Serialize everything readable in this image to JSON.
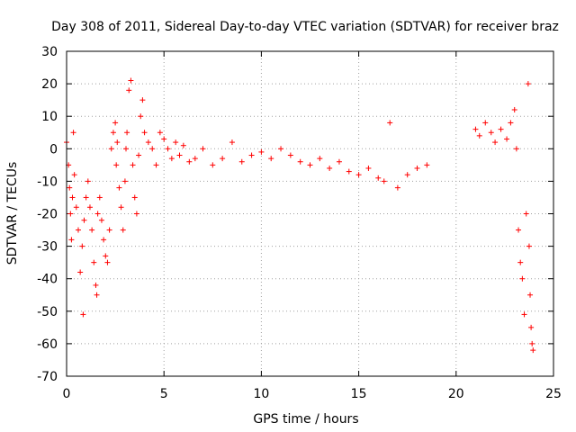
{
  "chart_data": {
    "type": "scatter",
    "title": "Day 308 of 2011, Sidereal Day-to-day VTEC variation (SDTVAR) for receiver braz",
    "xlabel": "GPS time / hours",
    "ylabel": "SDTVAR / TECUs",
    "xlim": [
      0,
      25
    ],
    "ylim": [
      -70,
      30
    ],
    "xticks": [
      0,
      5,
      10,
      15,
      20,
      25
    ],
    "yticks": [
      -70,
      -60,
      -50,
      -40,
      -30,
      -20,
      -10,
      0,
      10,
      20,
      30
    ],
    "xtick_labels": [
      "0",
      "5",
      "10",
      "15",
      "20",
      "25"
    ],
    "ytick_labels": [
      "-70",
      "-60",
      "-50",
      "-40",
      "-30",
      "-20",
      "-10",
      "0",
      "10",
      "20",
      "30"
    ],
    "grid": true,
    "marker": "plus",
    "color": "#ff0000",
    "series": [
      {
        "name": "SDTVAR",
        "x": [
          0.0,
          0.1,
          0.15,
          0.2,
          0.25,
          0.3,
          0.35,
          0.4,
          0.5,
          0.6,
          0.7,
          0.8,
          0.85,
          0.9,
          1.0,
          1.1,
          1.2,
          1.3,
          1.4,
          1.5,
          1.55,
          1.6,
          1.7,
          1.8,
          1.9,
          2.0,
          2.1,
          2.2,
          2.3,
          2.4,
          2.5,
          2.55,
          2.6,
          2.7,
          2.8,
          2.9,
          3.0,
          3.05,
          3.1,
          3.2,
          3.3,
          3.4,
          3.5,
          3.6,
          3.7,
          3.8,
          3.9,
          4.0,
          4.2,
          4.4,
          4.6,
          4.8,
          5.0,
          5.2,
          5.4,
          5.6,
          5.8,
          6.0,
          6.3,
          6.6,
          7.0,
          7.5,
          8.0,
          8.5,
          9.0,
          9.5,
          10.0,
          10.5,
          11.0,
          11.5,
          12.0,
          12.5,
          13.0,
          13.5,
          14.0,
          14.5,
          15.0,
          15.5,
          16.0,
          16.3,
          16.6,
          17.0,
          17.5,
          18.0,
          18.5,
          21.0,
          21.2,
          21.5,
          21.8,
          22.0,
          22.3,
          22.6,
          22.8,
          23.0,
          23.1,
          23.2,
          23.3,
          23.4,
          23.5,
          23.6,
          23.7,
          23.75,
          23.8,
          23.85,
          23.9,
          23.95
        ],
        "y": [
          2,
          -5,
          -12,
          -20,
          -28,
          -15,
          5,
          -8,
          -18,
          -25,
          -38,
          -30,
          -51,
          -22,
          -15,
          -10,
          -18,
          -25,
          -35,
          -42,
          -45,
          -20,
          -15,
          -22,
          -28,
          -33,
          -35,
          -25,
          0,
          5,
          8,
          -5,
          2,
          -12,
          -18,
          -25,
          -10,
          0,
          5,
          18,
          21,
          -5,
          -15,
          -20,
          -2,
          10,
          15,
          5,
          2,
          0,
          -5,
          5,
          3,
          0,
          -3,
          2,
          -2,
          1,
          -4,
          -3,
          0,
          -5,
          -3,
          2,
          -4,
          -2,
          -1,
          -3,
          0,
          -2,
          -4,
          -5,
          -3,
          -6,
          -4,
          -7,
          -8,
          -6,
          -9,
          -10,
          8,
          -12,
          -8,
          -6,
          -5,
          6,
          4,
          8,
          5,
          2,
          6,
          3,
          8,
          12,
          0,
          -25,
          -35,
          -40,
          -51,
          -20,
          20,
          -30,
          -45,
          -55,
          -60,
          -62
        ]
      }
    ]
  }
}
